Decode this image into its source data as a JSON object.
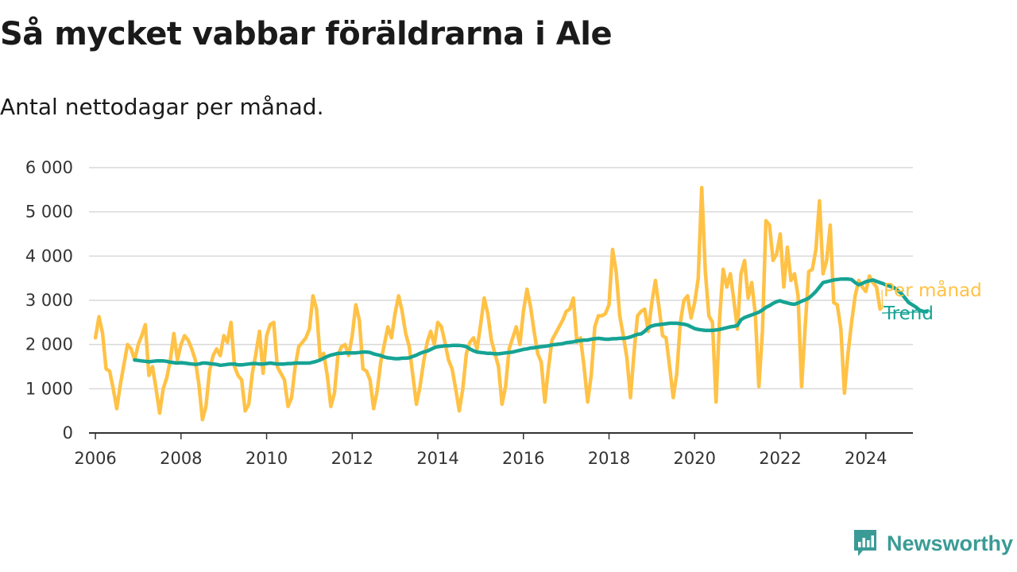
{
  "header": {
    "title": "Så mycket vabbar föräldrarna i Ale",
    "subtitle": "Antal nettodagar per månad."
  },
  "brand": {
    "name": "Newsworthy",
    "icon": "newsworthy-logo-icon"
  },
  "colors": {
    "monthly": "#ffc246",
    "trend": "#16a394",
    "grid": "#d9d9d9",
    "axis": "#333333",
    "brand": "#3a9b96"
  },
  "chart_data": {
    "type": "line",
    "title": "Så mycket vabbar föräldrarna i Ale",
    "subtitle": "Antal nettodagar per månad.",
    "xlabel": "",
    "ylabel": "",
    "xlim": [
      2005.85,
      2025.1
    ],
    "ylim": [
      0,
      6000
    ],
    "x_ticks": [
      2006,
      2008,
      2010,
      2012,
      2014,
      2016,
      2018,
      2020,
      2022,
      2024
    ],
    "y_ticks": [
      {
        "value": 0,
        "label": "0"
      },
      {
        "value": 1000,
        "label": "1 000"
      },
      {
        "value": 2000,
        "label": "2 000"
      },
      {
        "value": 3000,
        "label": "3 000"
      },
      {
        "value": 4000,
        "label": "4 000"
      },
      {
        "value": 5000,
        "label": "5 000"
      },
      {
        "value": 6000,
        "label": "6 000"
      }
    ],
    "grid": true,
    "legend": "right end of lines",
    "series": [
      {
        "name": "Per månad",
        "color": "#ffc246",
        "start": 2006.0,
        "step": 0.0833333,
        "values": [
          2150,
          2630,
          2250,
          1450,
          1400,
          1000,
          550,
          1100,
          1550,
          2000,
          1900,
          1650,
          2000,
          2200,
          2450,
          1300,
          1500,
          1000,
          450,
          1000,
          1250,
          1650,
          2250,
          1650,
          2000,
          2200,
          2100,
          1900,
          1650,
          1100,
          300,
          600,
          1400,
          1750,
          1900,
          1750,
          2200,
          2050,
          2500,
          1500,
          1300,
          1200,
          500,
          650,
          1350,
          1800,
          2300,
          1350,
          2200,
          2450,
          2500,
          1500,
          1350,
          1200,
          600,
          800,
          1500,
          1950,
          2050,
          2150,
          2350,
          3100,
          2800,
          1700,
          1800,
          1300,
          600,
          900,
          1750,
          1950,
          2000,
          1750,
          2200,
          2900,
          2550,
          1450,
          1400,
          1200,
          550,
          950,
          1600,
          2000,
          2400,
          2150,
          2700,
          3100,
          2750,
          2250,
          1950,
          1300,
          650,
          1050,
          1600,
          2050,
          2300,
          2000,
          2500,
          2400,
          2050,
          1650,
          1450,
          1000,
          500,
          1000,
          1800,
          2050,
          2150,
          1900,
          2450,
          3050,
          2700,
          2100,
          1800,
          1500,
          650,
          1050,
          1900,
          2150,
          2400,
          2000,
          2750,
          3250,
          2850,
          2300,
          1800,
          1600,
          700,
          1450,
          2100,
          2250,
          2400,
          2550,
          2750,
          2800,
          3050,
          2050,
          2150,
          1500,
          700,
          1300,
          2400,
          2650,
          2650,
          2700,
          2900,
          4150,
          3650,
          2650,
          2200,
          1700,
          800,
          1800,
          2650,
          2750,
          2800,
          2300,
          2950,
          3450,
          2850,
          2200,
          2150,
          1500,
          800,
          1350,
          2500,
          3000,
          3100,
          2600,
          2950,
          3500,
          5550,
          3650,
          2650,
          2500,
          700,
          2600,
          3700,
          3300,
          3600,
          3000,
          2350,
          3600,
          3900,
          3050,
          3400,
          2700,
          1050,
          2300,
          4800,
          4700,
          3900,
          4050,
          4500,
          3300,
          4200,
          3450,
          3600,
          3100,
          1050,
          2400,
          3650,
          3700,
          4150,
          5250,
          3600,
          3900,
          4700,
          2950,
          2900,
          2350,
          900,
          1800,
          2500,
          3100,
          3450,
          3300,
          3200,
          3550,
          3400,
          3300,
          2800
        ]
      },
      {
        "name": "Trend",
        "color": "#16a394",
        "start": 2006.9167,
        "step": 0.0833333,
        "values": [
          1650,
          1640,
          1630,
          1620,
          1610,
          1620,
          1630,
          1630,
          1630,
          1620,
          1600,
          1590,
          1580,
          1590,
          1580,
          1570,
          1560,
          1550,
          1560,
          1580,
          1580,
          1570,
          1560,
          1550,
          1530,
          1540,
          1550,
          1560,
          1560,
          1540,
          1540,
          1550,
          1560,
          1570,
          1570,
          1560,
          1560,
          1570,
          1580,
          1570,
          1560,
          1560,
          1560,
          1570,
          1570,
          1580,
          1580,
          1580,
          1580,
          1580,
          1600,
          1620,
          1650,
          1690,
          1730,
          1760,
          1780,
          1800,
          1800,
          1810,
          1810,
          1810,
          1810,
          1820,
          1830,
          1830,
          1820,
          1790,
          1770,
          1750,
          1720,
          1700,
          1690,
          1680,
          1680,
          1690,
          1690,
          1700,
          1730,
          1760,
          1800,
          1830,
          1850,
          1890,
          1930,
          1950,
          1960,
          1970,
          1970,
          1980,
          1980,
          1980,
          1970,
          1950,
          1900,
          1860,
          1830,
          1820,
          1810,
          1800,
          1800,
          1790,
          1790,
          1800,
          1810,
          1820,
          1830,
          1850,
          1870,
          1890,
          1900,
          1920,
          1930,
          1940,
          1950,
          1960,
          1970,
          1990,
          2000,
          2010,
          2020,
          2040,
          2050,
          2060,
          2080,
          2090,
          2100,
          2100,
          2120,
          2130,
          2140,
          2130,
          2120,
          2120,
          2130,
          2130,
          2140,
          2140,
          2150,
          2170,
          2200,
          2230,
          2240,
          2300,
          2380,
          2420,
          2440,
          2450,
          2460,
          2470,
          2480,
          2480,
          2480,
          2470,
          2460,
          2440,
          2400,
          2360,
          2340,
          2330,
          2320,
          2320,
          2320,
          2330,
          2340,
          2360,
          2380,
          2400,
          2410,
          2430,
          2560,
          2610,
          2640,
          2670,
          2700,
          2730,
          2780,
          2840,
          2880,
          2930,
          2970,
          2990,
          2960,
          2940,
          2920,
          2910,
          2940,
          2980,
          3010,
          3050,
          3120,
          3200,
          3300,
          3400,
          3420,
          3440,
          3460,
          3470,
          3480,
          3480,
          3480,
          3470,
          3400,
          3350,
          3380,
          3420,
          3440,
          3460,
          3430,
          3400,
          3370,
          3340,
          3310,
          3280,
          3220,
          3150,
          3050,
          2950,
          2900,
          2850,
          2780,
          2750,
          2740
        ]
      }
    ]
  }
}
